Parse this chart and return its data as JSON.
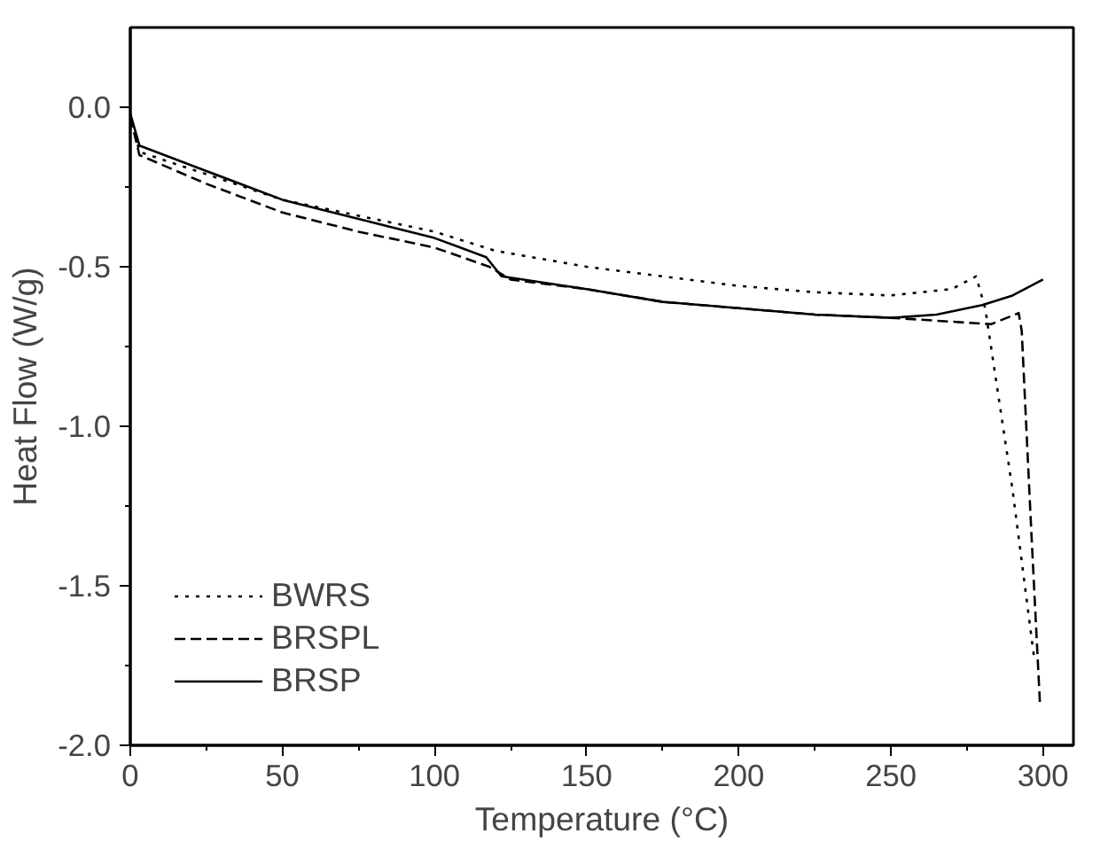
{
  "chart_data": {
    "type": "line",
    "xlabel": "Temperature (°C)",
    "ylabel": "Heat Flow (W/g)",
    "xlim": [
      0,
      310
    ],
    "ylim": [
      -2.0,
      0.25
    ],
    "xticks": [
      0,
      50,
      100,
      150,
      200,
      250,
      300
    ],
    "yticks": [
      {
        "value": -2.0,
        "label": "-2.0"
      },
      {
        "value": -1.5,
        "label": "-1.5"
      },
      {
        "value": -1.0,
        "label": "-1.0"
      },
      {
        "value": -0.5,
        "label": "-0.5"
      },
      {
        "value": 0.0,
        "label": "0.0"
      }
    ],
    "grid": false,
    "legend": "bottom left",
    "series": [
      {
        "name": "BWRS",
        "color": "#000000",
        "line_style": "dotted",
        "x": [
          0,
          3,
          25,
          50,
          75,
          100,
          120,
          150,
          175,
          200,
          225,
          250,
          270,
          278,
          281,
          290,
          297
        ],
        "values": [
          -0.02,
          -0.14,
          -0.21,
          -0.29,
          -0.34,
          -0.39,
          -0.45,
          -0.5,
          -0.53,
          -0.56,
          -0.58,
          -0.59,
          -0.57,
          -0.53,
          -0.63,
          -1.2,
          -1.72
        ]
      },
      {
        "name": "BRSPL",
        "color": "#000000",
        "line_style": "dashed",
        "x": [
          0,
          3,
          25,
          50,
          75,
          100,
          118,
          125,
          150,
          175,
          200,
          225,
          250,
          283,
          292,
          293,
          296,
          299
        ],
        "values": [
          -0.03,
          -0.15,
          -0.24,
          -0.33,
          -0.39,
          -0.44,
          -0.5,
          -0.54,
          -0.57,
          -0.61,
          -0.63,
          -0.65,
          -0.66,
          -0.68,
          -0.645,
          -0.7,
          -1.3,
          -1.87
        ]
      },
      {
        "name": "BRSP",
        "color": "#000000",
        "line_style": "solid",
        "x": [
          0,
          3,
          25,
          50,
          75,
          100,
          117,
          122,
          150,
          175,
          200,
          225,
          250,
          265,
          280,
          290,
          300
        ],
        "values": [
          -0.02,
          -0.12,
          -0.2,
          -0.29,
          -0.35,
          -0.41,
          -0.47,
          -0.53,
          -0.57,
          -0.61,
          -0.63,
          -0.65,
          -0.66,
          -0.65,
          -0.62,
          -0.59,
          -0.54
        ]
      }
    ]
  }
}
